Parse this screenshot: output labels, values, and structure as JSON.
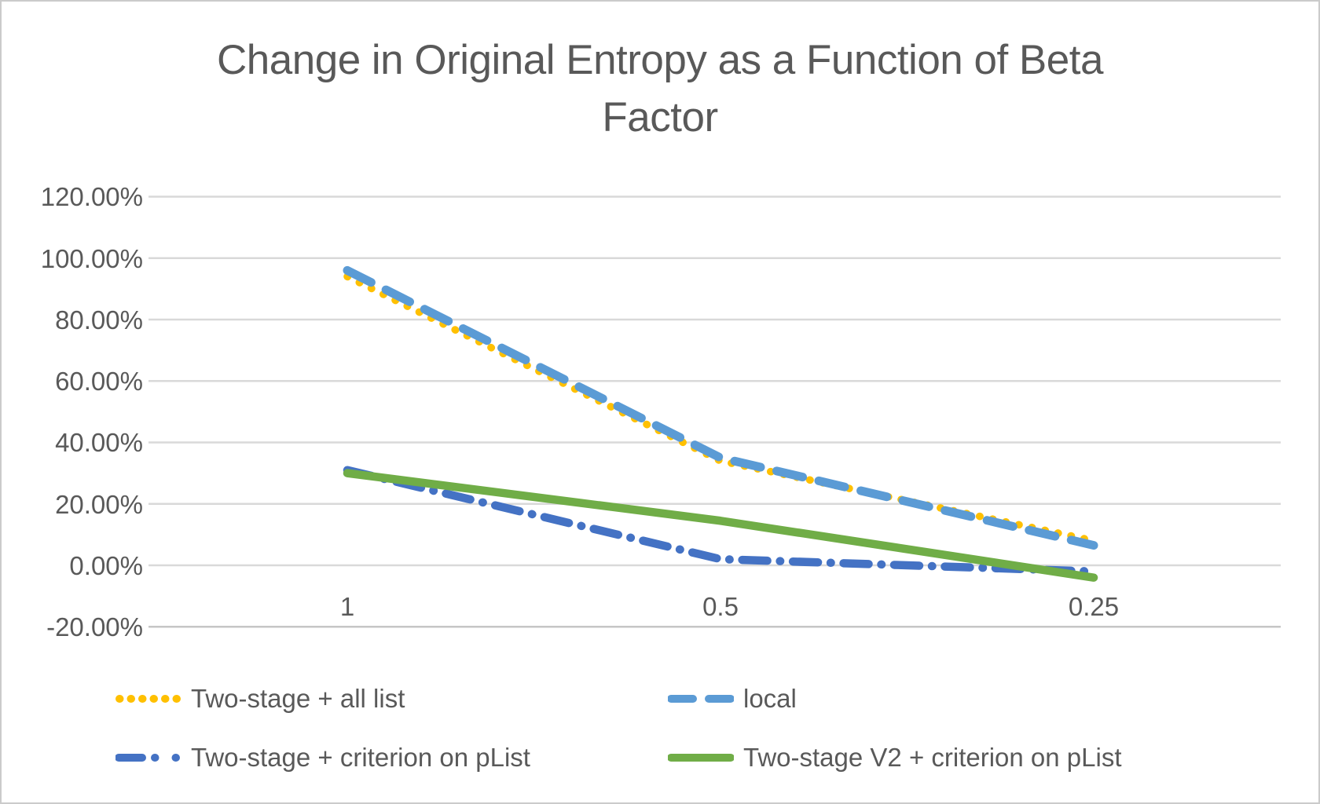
{
  "chart_data": {
    "type": "line",
    "title": "Change in Original Entropy as a Function of Beta Factor",
    "title_lines": [
      "Change in Original Entropy as a Function of Beta",
      "Factor"
    ],
    "categories": [
      "1",
      "0.5",
      "0.25"
    ],
    "series": [
      {
        "name": "Two-stage + all list",
        "color": "#FFC000",
        "style": "dotted",
        "values": [
          94,
          34,
          8
        ]
      },
      {
        "name": "local",
        "color": "#5B9BD5",
        "style": "dashed",
        "values": [
          96,
          35,
          6.5
        ]
      },
      {
        "name": "Two-stage + criterion on pList",
        "color": "#4472C4",
        "style": "dash-dot",
        "values": [
          31,
          2,
          -2
        ]
      },
      {
        "name": "Two-stage V2 + criterion on pList",
        "color": "#70AD47",
        "style": "solid",
        "values": [
          30,
          14.5,
          -4
        ]
      }
    ],
    "y_axis": {
      "min": -20,
      "max": 120,
      "step": 20,
      "unit": "percent",
      "tick_labels": [
        "120.00%",
        "100.00%",
        "80.00%",
        "60.00%",
        "40.00%",
        "20.00%",
        "0.00%",
        "-20.00%"
      ]
    },
    "x_axis": {
      "tick_labels": [
        "1",
        "0.5",
        "0.25"
      ]
    },
    "legend_position": "bottom",
    "grid": "horizontal"
  },
  "colors": {
    "text": "#595959",
    "gridline": "#D9D9D9",
    "axis_line": "#C6C6C6",
    "background": "#FFFFFF",
    "border": "#CBCBCB"
  }
}
